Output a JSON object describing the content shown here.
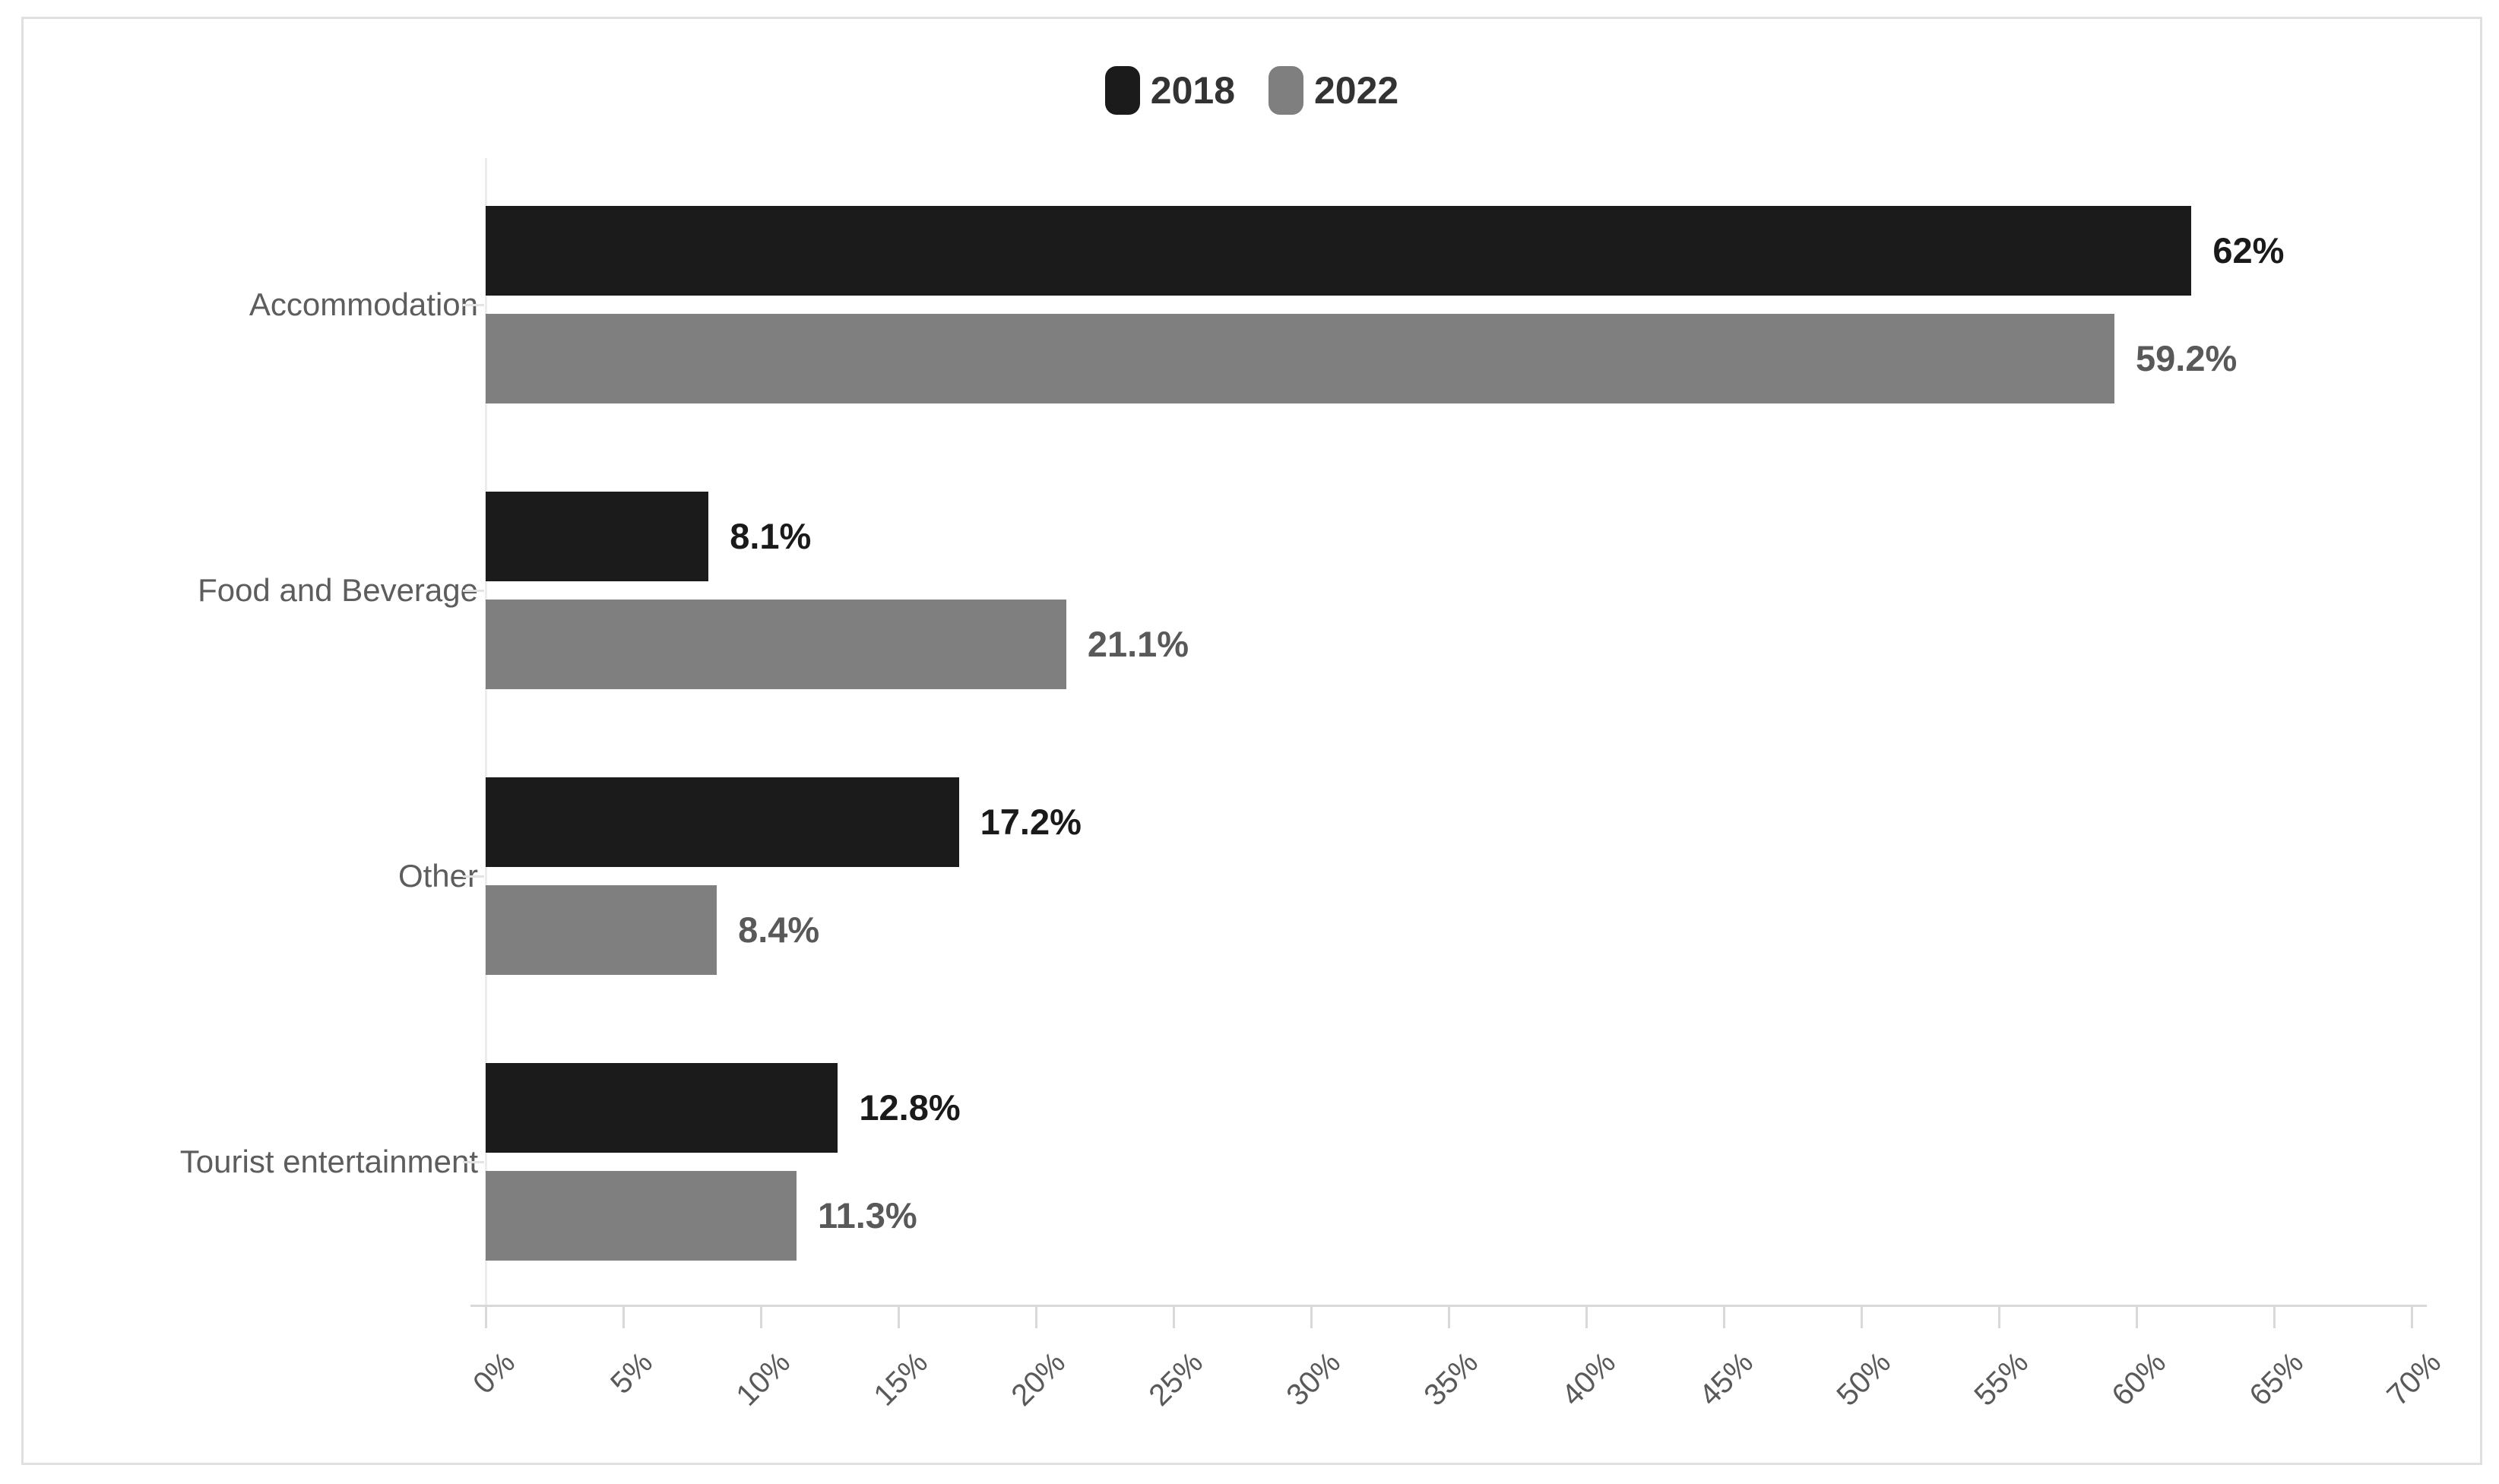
{
  "chart_data": {
    "type": "bar",
    "orientation": "horizontal",
    "title": "",
    "xlabel": "",
    "ylabel": "",
    "categories": [
      "Accommodation",
      "Food and Beverage",
      "Other",
      "Tourist entertainment"
    ],
    "series": [
      {
        "name": "2018",
        "color": "#1b1b1b",
        "label_color": "#1a1a1a",
        "values": [
          62,
          8.1,
          17.2,
          12.8
        ],
        "value_labels": [
          "62%",
          "8.1%",
          "17.2%",
          "12.8%"
        ]
      },
      {
        "name": "2022",
        "color": "#7f7f7f",
        "label_color": "#595959",
        "values": [
          59.2,
          21.1,
          8.4,
          11.3
        ],
        "value_labels": [
          "59.2%",
          "21.1%",
          "8.4%",
          "11.3%"
        ]
      }
    ],
    "xlim": [
      0,
      70
    ],
    "x_tick_values": [
      0,
      5,
      10,
      15,
      20,
      25,
      30,
      35,
      40,
      45,
      50,
      55,
      60,
      65,
      70
    ],
    "x_tick_labels": [
      "0%",
      "5%",
      "10%",
      "15%",
      "20%",
      "25%",
      "30%",
      "35%",
      "40%",
      "45%",
      "50%",
      "55%",
      "60%",
      "65%",
      "70%"
    ],
    "legend_position": "top-center",
    "grid": "zero-line-only"
  },
  "colors": {
    "frame_border": "#e0e0e0",
    "axis_line": "#d9d9d9",
    "zero_gridline": "#ececec",
    "tick_label": "#595959",
    "category_label": "#5d5d5d",
    "legend_text": "#333333",
    "background": "#ffffff"
  }
}
